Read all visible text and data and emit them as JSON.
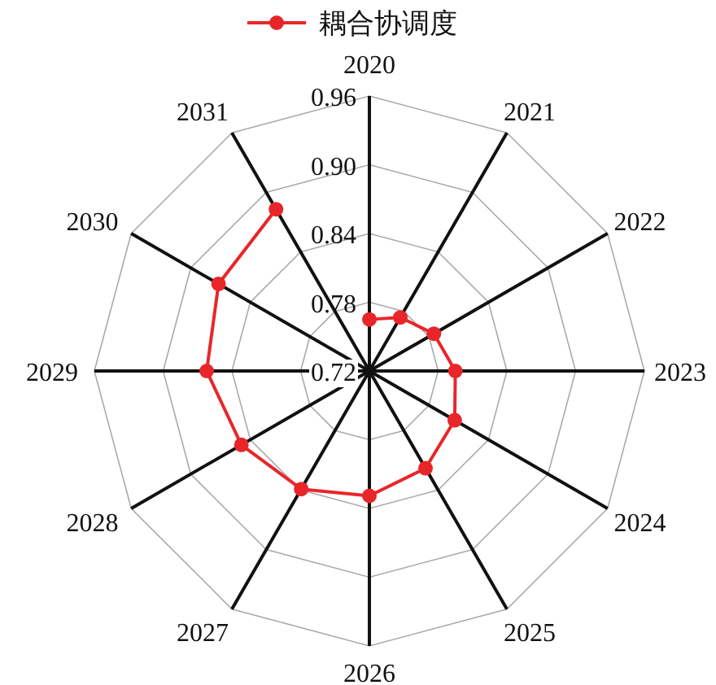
{
  "chart_data": {
    "type": "radar",
    "categories": [
      "2020",
      "2021",
      "2022",
      "2023",
      "2024",
      "2025",
      "2026",
      "2027",
      "2028",
      "2029",
      "2030",
      "2031"
    ],
    "series": [
      {
        "name": "耦合协调度",
        "color": "#e8262a",
        "values": [
          0.765,
          0.774,
          0.785,
          0.795,
          0.806,
          0.818,
          0.829,
          0.839,
          0.849,
          0.862,
          0.872,
          0.883
        ]
      }
    ],
    "ylim": [
      0.72,
      0.96
    ],
    "yticks": [
      {
        "value": 0.72,
        "label": "0.72"
      },
      {
        "value": 0.78,
        "label": "0.78"
      },
      {
        "value": 0.84,
        "label": "0.84"
      },
      {
        "value": 0.9,
        "label": "0.90"
      },
      {
        "value": 0.96,
        "label": "0.96"
      }
    ],
    "grid": true,
    "legend": "top",
    "marker": "circle"
  }
}
